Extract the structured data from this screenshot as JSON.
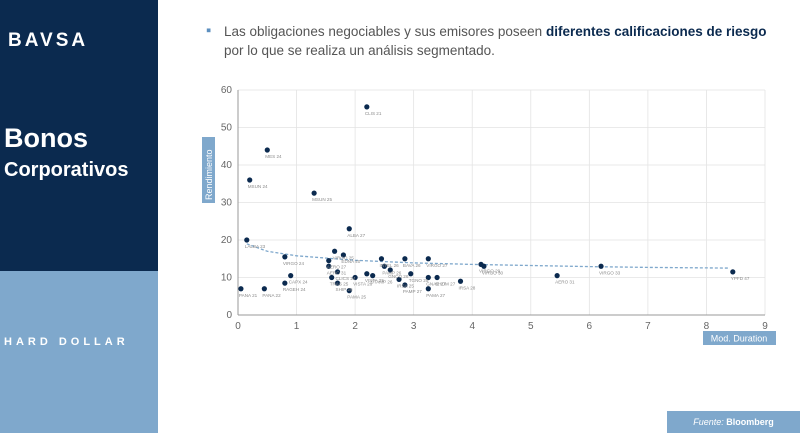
{
  "brand": {
    "logo": "BAVSA"
  },
  "sidebar": {
    "title_line1": "Bonos",
    "title_line2": "Corporativos",
    "section": "HARD DOLLAR"
  },
  "bullet": {
    "text_a": "Las obligaciones negociables y sus emisores poseen ",
    "text_bold": "diferentes calificaciones de riesgo",
    "text_b": " por lo que se realiza un análisis segmentado."
  },
  "source": {
    "label": "Fuente:",
    "name": "Bloomberg"
  },
  "colors": {
    "navy": "#0b2a4f",
    "light_blue": "#7fa8cc",
    "point": "#0b2a4f",
    "trend": "#7fa8cc"
  },
  "chart_data": {
    "type": "scatter",
    "xlabel": "Mod. Duration",
    "ylabel": "Rendimiento",
    "xlim": [
      0,
      9
    ],
    "ylim": [
      0,
      60
    ],
    "xticks": [
      0,
      1,
      2,
      3,
      4,
      5,
      6,
      7,
      8,
      9
    ],
    "yticks": [
      0,
      10,
      20,
      30,
      40,
      50,
      60
    ],
    "grid": true,
    "trendline": {
      "type": "log",
      "points": [
        [
          0.15,
          19
        ],
        [
          0.5,
          17
        ],
        [
          1,
          15.8
        ],
        [
          2,
          14.6
        ],
        [
          3,
          13.9
        ],
        [
          4,
          13.5
        ],
        [
          5,
          13.2
        ],
        [
          6,
          12.9
        ],
        [
          7,
          12.7
        ],
        [
          8.4,
          12.5
        ]
      ]
    },
    "points": [
      {
        "label": "CLIS 21",
        "x": 2.2,
        "y": 55.5
      },
      {
        "label": "MES 24",
        "x": 0.5,
        "y": 44
      },
      {
        "label": "MSUN 24",
        "x": 0.2,
        "y": 36
      },
      {
        "label": "MSUN 25",
        "x": 1.3,
        "y": 32.5
      },
      {
        "label": "ALBA 27",
        "x": 1.9,
        "y": 23
      },
      {
        "label": "LALBA 23",
        "x": 0.15,
        "y": 20
      },
      {
        "label": "VIRGO 25",
        "x": 1.65,
        "y": 17
      },
      {
        "label": "EDNA 40",
        "x": 1.8,
        "y": 16
      },
      {
        "label": "VIRGO 24",
        "x": 0.8,
        "y": 15.5
      },
      {
        "label": "AERO 27",
        "x": 1.55,
        "y": 14.5
      },
      {
        "label": "AERO 31",
        "x": 1.55,
        "y": 13
      },
      {
        "label": "CLICS 24",
        "x": 1.7,
        "y": 11.5
      },
      {
        "label": "TRAS 25",
        "x": 1.6,
        "y": 10
      },
      {
        "label": "CAPX 24",
        "x": 0.9,
        "y": 10.5
      },
      {
        "label": "RAGEH 24",
        "x": 0.8,
        "y": 8.5
      },
      {
        "label": "PANA 22",
        "x": 0.45,
        "y": 7
      },
      {
        "label": "PANA 21",
        "x": 0.05,
        "y": 7
      },
      {
        "label": "SHIP 26",
        "x": 1.7,
        "y": 8.5
      },
      {
        "label": "PAMA 25",
        "x": 1.9,
        "y": 6.5
      },
      {
        "label": "INTEL 26",
        "x": 2.45,
        "y": 15
      },
      {
        "label": "BAVA 26",
        "x": 2.85,
        "y": 15
      },
      {
        "label": "VIRGO 27",
        "x": 3.25,
        "y": 15
      },
      {
        "label": "PAMP 26",
        "x": 2.5,
        "y": 13
      },
      {
        "label": "GNCO 26",
        "x": 2.6,
        "y": 12
      },
      {
        "label": "STAMP 26",
        "x": 2.3,
        "y": 10.5
      },
      {
        "label": "VISTA 26",
        "x": 2.0,
        "y": 10
      },
      {
        "label": "VISTA 25",
        "x": 2.2,
        "y": 11
      },
      {
        "label": "TGNO 25",
        "x": 2.95,
        "y": 11
      },
      {
        "label": "IRSA 25",
        "x": 2.75,
        "y": 9.5
      },
      {
        "label": "PAMP 27",
        "x": 2.85,
        "y": 8
      },
      {
        "label": "GNAE 27",
        "x": 3.25,
        "y": 10
      },
      {
        "label": "SHOM 27",
        "x": 3.4,
        "y": 10
      },
      {
        "label": "PAMA 27",
        "x": 3.25,
        "y": 7
      },
      {
        "label": "IRSA 28",
        "x": 3.8,
        "y": 9
      },
      {
        "label": "VIRGO 29",
        "x": 4.15,
        "y": 13.5
      },
      {
        "label": "VIRGO 30",
        "x": 4.2,
        "y": 13
      },
      {
        "label": "AERO 31",
        "x": 5.45,
        "y": 10.5
      },
      {
        "label": "VIRGO 33",
        "x": 6.2,
        "y": 13
      },
      {
        "label": "YPFD 47",
        "x": 8.45,
        "y": 11.5
      }
    ]
  }
}
